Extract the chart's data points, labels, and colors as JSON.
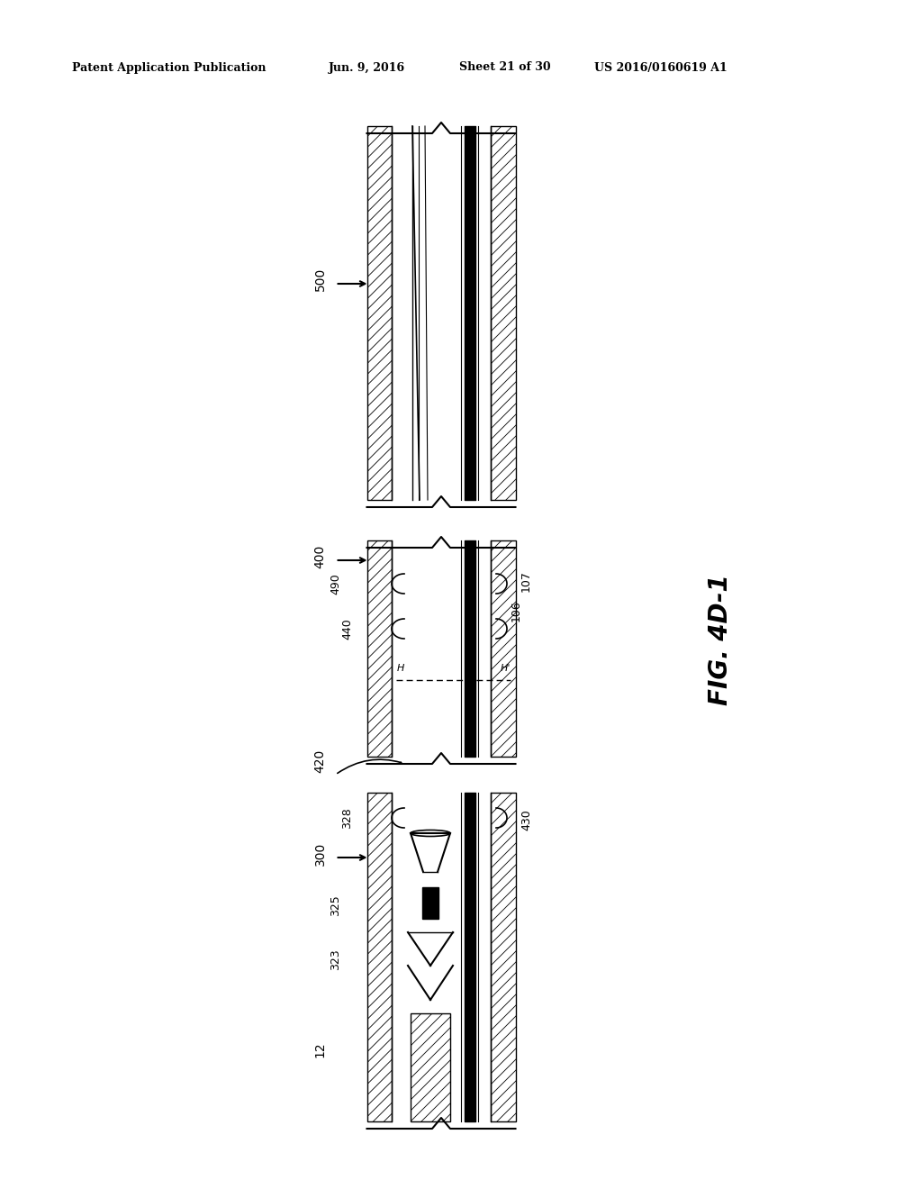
{
  "bg_color": "#ffffff",
  "header_text1": "Patent Application Publication",
  "header_text2": "Jun. 9, 2016",
  "header_text3": "Sheet 21 of 30",
  "header_text4": "US 2016/0160619 A1",
  "fig_label": "FIG. 4D-1",
  "page_width": 10.24,
  "page_height": 13.2
}
